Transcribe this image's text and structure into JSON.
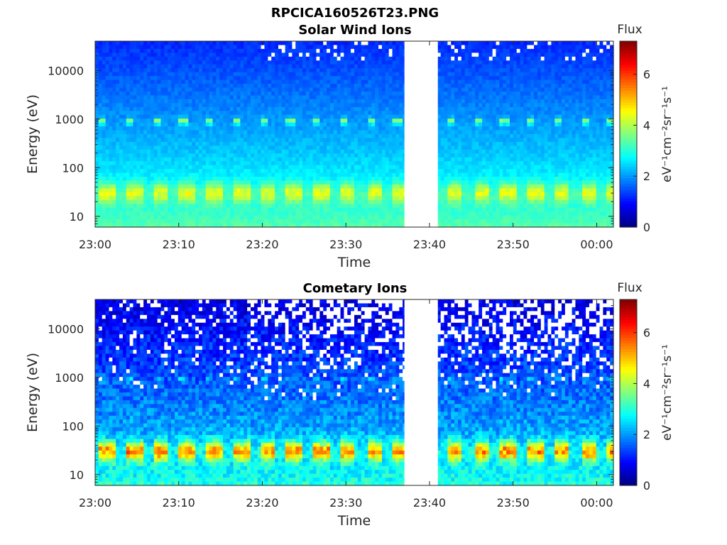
{
  "figure": {
    "main_title": "RPCICA160526T23.PNG"
  },
  "chart_data": [
    {
      "type": "heatmap",
      "title": "Solar Wind Ions",
      "xlabel": "Time",
      "ylabel": "Energy (eV)",
      "y_scale": "log",
      "ylim": [
        6,
        40000
      ],
      "xlim": [
        "23:00",
        "00:02"
      ],
      "x_ticks": [
        "23:00",
        "23:10",
        "23:20",
        "23:30",
        "23:40",
        "23:50",
        "00:00"
      ],
      "y_ticks": [
        "10",
        "100",
        "1000",
        "10000"
      ],
      "data_gap": [
        "23:37",
        "23:41"
      ],
      "colorbar": {
        "label": "Flux",
        "units": "eV⁻¹cm⁻²sr⁻¹s⁻¹",
        "range": [
          0,
          7.3
        ],
        "ticks": [
          "0",
          "2",
          "4",
          "6"
        ],
        "colormap": "jet"
      },
      "features": {
        "background_log_flux_high_energy": 1.2,
        "background_log_flux_low_energy": 3.4,
        "band_energy_eV": 30,
        "band_peak_log_flux": 4.6,
        "secondary_band_energy_eV": 900,
        "secondary_band_peak_log_flux": 3.9,
        "pulse_period_min": 3.2,
        "noise_level": "low"
      }
    },
    {
      "type": "heatmap",
      "title": "Cometary Ions",
      "xlabel": "Time",
      "ylabel": "Energy (eV)",
      "y_scale": "log",
      "ylim": [
        6,
        40000
      ],
      "xlim": [
        "23:00",
        "00:02"
      ],
      "x_ticks": [
        "23:00",
        "23:10",
        "23:20",
        "23:30",
        "23:40",
        "23:50",
        "00:00"
      ],
      "y_ticks": [
        "10",
        "100",
        "1000",
        "10000"
      ],
      "data_gap": [
        "23:37",
        "23:41"
      ],
      "colorbar": {
        "label": "Flux",
        "units": "eV⁻¹cm⁻²sr⁻¹s⁻¹",
        "range": [
          0,
          7.3
        ],
        "ticks": [
          "0",
          "2",
          "4",
          "6"
        ],
        "colormap": "jet"
      },
      "features": {
        "background_log_flux_high_energy": 0.7,
        "background_log_flux_low_energy": 3.0,
        "band_energy_eV": 30,
        "band_peak_log_flux": 5.7,
        "secondary_band_energy_eV": 900,
        "secondary_band_peak_log_flux": 2.4,
        "pulse_period_min": 3.2,
        "noise_level": "high"
      }
    }
  ]
}
